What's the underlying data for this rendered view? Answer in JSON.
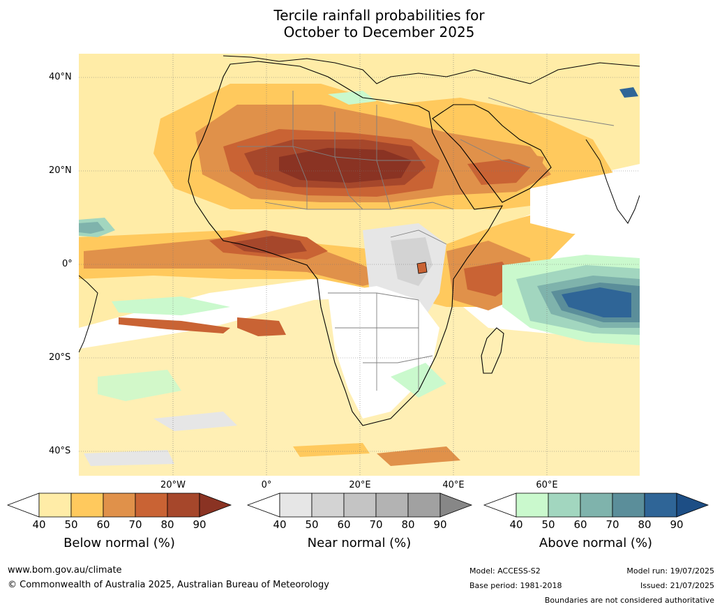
{
  "title_line1": "Tercile rainfall probabilities for",
  "title_line2": "October to December 2025",
  "lat_labels": [
    "40°N",
    "20°N",
    "0°",
    "20°S",
    "40°S"
  ],
  "lon_labels": [
    "20°W",
    "0°",
    "20°E",
    "40°E",
    "60°E"
  ],
  "colors": {
    "below": [
      "#ffeca7",
      "#ffc95d",
      "#e0914a",
      "#c96334",
      "#a6472b",
      "#8a3323"
    ],
    "near": [
      "#e6e6e6",
      "#d3d3d3",
      "#c4c4c4",
      "#b3b3b3",
      "#a1a1a1",
      "#878787"
    ],
    "above": [
      "#caf9cd",
      "#a2d6bf",
      "#7fb3ac",
      "#5b8e9a",
      "#2f6597",
      "#1d4e85"
    ],
    "ocean_label": "white",
    "coast": "#000000",
    "border": "#808080"
  },
  "colorbars": [
    {
      "title": "Below normal (%)",
      "ticks": [
        "40",
        "50",
        "60",
        "70",
        "80",
        "90"
      ]
    },
    {
      "title": "Near normal (%)",
      "ticks": [
        "40",
        "50",
        "60",
        "70",
        "80",
        "90"
      ]
    },
    {
      "title": "Above normal (%)",
      "ticks": [
        "40",
        "50",
        "60",
        "70",
        "80",
        "90"
      ]
    }
  ],
  "footer": {
    "website": "www.bom.gov.au/climate",
    "copyright": "© Commonwealth of Australia 2025, Australian Bureau of Meteorology",
    "model": "Model: ACCESS-S2",
    "base_period": "Base period: 1981-2018",
    "model_run": "Model run: 19/07/2025",
    "issued": "Issued: 21/07/2025",
    "disclaimer": "Boundaries are not considered authoritative"
  }
}
